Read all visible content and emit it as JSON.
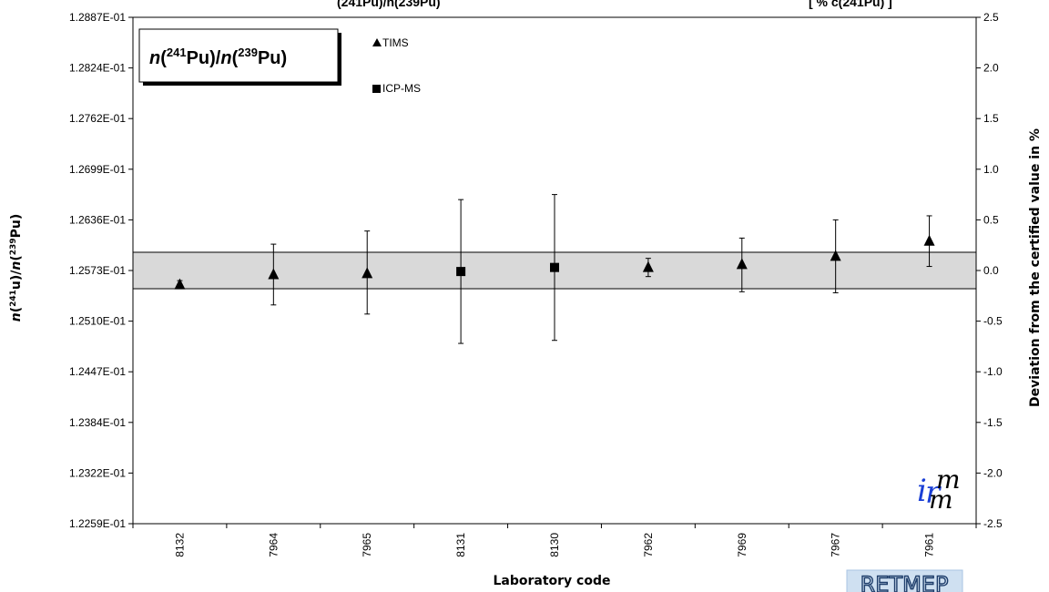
{
  "header": {
    "fragment_left": "(241Pu)/n(239Pu)",
    "fragment_right": "[ %  c(241Pu) ]"
  },
  "legend_box_title": {
    "n1": "n",
    "open1": "(",
    "sup1": "241",
    "pu1": "Pu)/",
    "n2": "n",
    "open2": "(",
    "sup2": "239",
    "pu2": "Pu)"
  },
  "logos": {
    "irmm_i": "i",
    "irmm_r": "r",
    "irmm_m1": "m",
    "irmm_m2": "m",
    "retmep": "RETMEP"
  },
  "chart_data": {
    "type": "scatter",
    "xlabel": "Laboratory code",
    "ylabel": {
      "n1": "n",
      "open1": "(",
      "sup1": "241",
      "u": "u)/",
      "n2": "n",
      "open2": "(",
      "sup2": "239",
      "pu": "Pu)"
    },
    "y2label": "Deviation from the certified value in %",
    "categories": [
      "8132",
      "7964",
      "7965",
      "8131",
      "8130",
      "7962",
      "7969",
      "7967",
      "7961"
    ],
    "yticks": [
      "1.2259E-01",
      "1.2322E-01",
      "1.2384E-01",
      "1.2447E-01",
      "1.2510E-01",
      "1.2573E-01",
      "1.2636E-01",
      "1.2699E-01",
      "1.2762E-01",
      "1.2824E-01",
      "1.2887E-01"
    ],
    "y2ticks": [
      "-2.5",
      "-2.0",
      "-1.5",
      "-1.0",
      "-0.5",
      "0.0",
      "0.5",
      "1.0",
      "1.5",
      "2.0",
      "2.5"
    ],
    "y2lim": [
      -2.5,
      2.5
    ],
    "certified_band": [
      -0.18,
      0.18
    ],
    "legend": [
      "TIMS",
      "ICP-MS"
    ],
    "legend_position": "top-left",
    "series": [
      {
        "name": "TIMS",
        "marker": "triangle",
        "points": [
          {
            "x": "8132",
            "y": -0.14,
            "err_low": -0.18,
            "err_high": -0.1
          },
          {
            "x": "7964",
            "y": -0.04,
            "err_low": -0.34,
            "err_high": 0.26
          },
          {
            "x": "7965",
            "y": -0.03,
            "err_low": -0.43,
            "err_high": 0.39
          },
          {
            "x": "7962",
            "y": 0.03,
            "err_low": -0.06,
            "err_high": 0.12
          },
          {
            "x": "7969",
            "y": 0.06,
            "err_low": -0.21,
            "err_high": 0.32
          },
          {
            "x": "7967",
            "y": 0.14,
            "err_low": -0.22,
            "err_high": 0.5
          },
          {
            "x": "7961",
            "y": 0.29,
            "err_low": 0.04,
            "err_high": 0.54
          }
        ]
      },
      {
        "name": "ICP-MS",
        "marker": "square",
        "points": [
          {
            "x": "8131",
            "y": -0.01,
            "err_low": -0.72,
            "err_high": 0.7
          },
          {
            "x": "8130",
            "y": 0.03,
            "err_low": -0.69,
            "err_high": 0.75
          }
        ]
      }
    ]
  }
}
